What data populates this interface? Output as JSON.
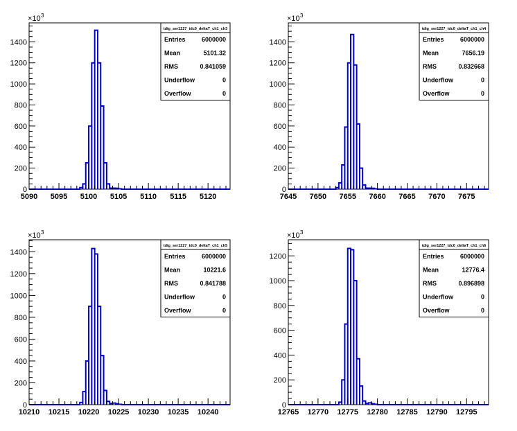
{
  "chart_data": [
    {
      "type": "bar",
      "histogram_name": "tdig_ser1227_tdc0_deltaT_ch1_ch3",
      "x_ticks": [
        "5090",
        "5095",
        "5100",
        "5105",
        "5110",
        "5115",
        "5120"
      ],
      "y_ticks": [
        "0",
        "200",
        "400",
        "600",
        "800",
        "1000",
        "1200",
        "1400"
      ],
      "y_exponent": "×10",
      "y_exponent_power": "3",
      "xlim": [
        5090,
        5123.7
      ],
      "ylim": [
        0,
        1580
      ],
      "bin_width": 0.5,
      "bins": [
        {
          "x": 5098.5,
          "y": 15
        },
        {
          "x": 5099.0,
          "y": 50
        },
        {
          "x": 5099.5,
          "y": 250
        },
        {
          "x": 5100.0,
          "y": 600
        },
        {
          "x": 5100.5,
          "y": 1200
        },
        {
          "x": 5101.0,
          "y": 1510
        },
        {
          "x": 5101.5,
          "y": 1200
        },
        {
          "x": 5102.0,
          "y": 790
        },
        {
          "x": 5102.5,
          "y": 250
        },
        {
          "x": 5103.0,
          "y": 50
        },
        {
          "x": 5103.5,
          "y": 10
        },
        {
          "x": 5104.0,
          "y": 10
        },
        {
          "x": 5104.5,
          "y": 8
        },
        {
          "x": 5105.0,
          "y": 3
        }
      ],
      "stats": {
        "labels": [
          "Entries",
          "Mean",
          "RMS",
          "Underflow",
          "Overflow"
        ],
        "values": [
          "6000000",
          "5101.32",
          "0.841059",
          "0",
          "0"
        ]
      }
    },
    {
      "type": "bar",
      "histogram_name": "tdig_ser1227_tdc0_deltaT_ch1_ch4",
      "x_ticks": [
        "7645",
        "7650",
        "7655",
        "7660",
        "7665",
        "7670",
        "7675"
      ],
      "y_ticks": [
        "0",
        "200",
        "400",
        "600",
        "800",
        "1000",
        "1200",
        "1400"
      ],
      "y_exponent": "×10",
      "y_exponent_power": "3",
      "xlim": [
        7645,
        7678.7
      ],
      "ylim": [
        0,
        1580
      ],
      "bin_width": 0.5,
      "bins": [
        {
          "x": 7653.0,
          "y": 15
        },
        {
          "x": 7653.5,
          "y": 60
        },
        {
          "x": 7654.0,
          "y": 230
        },
        {
          "x": 7654.5,
          "y": 590
        },
        {
          "x": 7655.0,
          "y": 1200
        },
        {
          "x": 7655.5,
          "y": 1470
        },
        {
          "x": 7656.0,
          "y": 1180
        },
        {
          "x": 7656.5,
          "y": 620
        },
        {
          "x": 7657.0,
          "y": 200
        },
        {
          "x": 7657.5,
          "y": 40
        },
        {
          "x": 7658.0,
          "y": 10
        },
        {
          "x": 7658.5,
          "y": 10
        },
        {
          "x": 7659.0,
          "y": 8
        },
        {
          "x": 7659.5,
          "y": 3
        }
      ],
      "stats": {
        "labels": [
          "Entries",
          "Mean",
          "RMS",
          "Underflow",
          "Overflow"
        ],
        "values": [
          "6000000",
          "7656.19",
          "0.832668",
          "0",
          "0"
        ]
      }
    },
    {
      "type": "bar",
      "histogram_name": "tdig_ser1227_tdc0_deltaT_ch1_ch5",
      "x_ticks": [
        "10210",
        "10215",
        "10220",
        "10225",
        "10230",
        "10235",
        "10240"
      ],
      "y_ticks": [
        "0",
        "200",
        "400",
        "600",
        "800",
        "1000",
        "1200",
        "1400"
      ],
      "y_exponent": "×10",
      "y_exponent_power": "3",
      "xlim": [
        10210,
        10243.7
      ],
      "ylim": [
        0,
        1510
      ],
      "bin_width": 0.5,
      "bins": [
        {
          "x": 10218.5,
          "y": 20
        },
        {
          "x": 10219.0,
          "y": 120
        },
        {
          "x": 10219.5,
          "y": 400
        },
        {
          "x": 10220.0,
          "y": 900
        },
        {
          "x": 10220.5,
          "y": 1430
        },
        {
          "x": 10221.0,
          "y": 1380
        },
        {
          "x": 10221.5,
          "y": 900
        },
        {
          "x": 10222.0,
          "y": 450
        },
        {
          "x": 10222.5,
          "y": 130
        },
        {
          "x": 10223.0,
          "y": 30
        },
        {
          "x": 10223.5,
          "y": 10
        },
        {
          "x": 10224.0,
          "y": 15
        },
        {
          "x": 10224.5,
          "y": 8
        },
        {
          "x": 10225.0,
          "y": 3
        }
      ],
      "stats": {
        "labels": [
          "Entries",
          "Mean",
          "RMS",
          "Underflow",
          "Overflow"
        ],
        "values": [
          "6000000",
          "10221.6",
          "0.841788",
          "0",
          "0"
        ]
      }
    },
    {
      "type": "bar",
      "histogram_name": "tdig_ser1227_tdc0_deltaT_ch1_ch6",
      "x_ticks": [
        "12765",
        "12770",
        "12775",
        "12780",
        "12785",
        "12790",
        "12795"
      ],
      "y_ticks": [
        "0",
        "200",
        "400",
        "600",
        "800",
        "1000",
        "1200"
      ],
      "y_exponent": "×10",
      "y_exponent_power": "3",
      "xlim": [
        12765,
        12798.7
      ],
      "ylim": [
        0,
        1330
      ],
      "bin_width": 0.5,
      "bins": [
        {
          "x": 12773.5,
          "y": 20
        },
        {
          "x": 12774.0,
          "y": 200
        },
        {
          "x": 12774.5,
          "y": 650
        },
        {
          "x": 12775.0,
          "y": 1260
        },
        {
          "x": 12775.5,
          "y": 1250
        },
        {
          "x": 12776.0,
          "y": 1000
        },
        {
          "x": 12776.5,
          "y": 370
        },
        {
          "x": 12777.0,
          "y": 150
        },
        {
          "x": 12777.5,
          "y": 30
        },
        {
          "x": 12778.0,
          "y": 10
        },
        {
          "x": 12778.5,
          "y": 15
        },
        {
          "x": 12779.0,
          "y": 8
        },
        {
          "x": 12779.5,
          "y": 3
        }
      ],
      "stats": {
        "labels": [
          "Entries",
          "Mean",
          "RMS",
          "Underflow",
          "Overflow"
        ],
        "values": [
          "6000000",
          "12776.4",
          "0.896898",
          "0",
          "0"
        ]
      }
    }
  ],
  "colors": {
    "histogram_line": "#0000cc",
    "axis": "#000000",
    "background": "#ffffff"
  }
}
